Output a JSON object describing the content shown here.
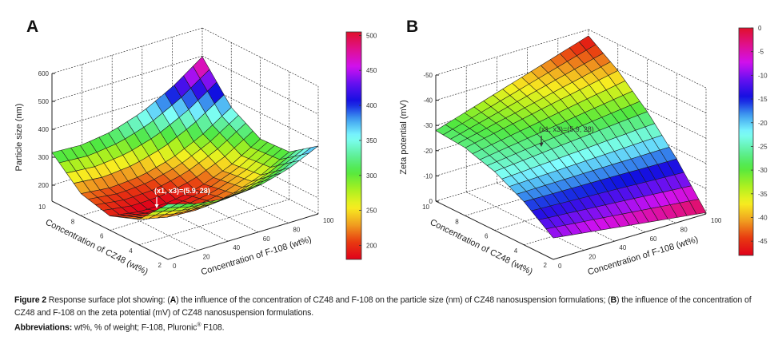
{
  "colormap": [
    "#e0001a",
    "#e83a10",
    "#f0a020",
    "#f8f020",
    "#a8f020",
    "#50e840",
    "#60f0a0",
    "#80ffff",
    "#40a0f0",
    "#1010e0",
    "#6010f0",
    "#d010f0",
    "#e01090",
    "#e0102a"
  ],
  "chart_data": [
    {
      "type": "surface",
      "panel": "A",
      "zlabel": "Particle size (nm)",
      "xlabel": "Concentration of CZ48 (wt%)",
      "ylabel": "Concentration of F-108 (wt%)",
      "x_ticks": [
        "10",
        "8",
        "6",
        "4",
        "2"
      ],
      "y_ticks": [
        "0",
        "20",
        "40",
        "60",
        "80",
        "100"
      ],
      "z_ticks": [
        "600",
        "500",
        "400",
        "300",
        "200"
      ],
      "x_range": [
        2,
        10
      ],
      "y_range": [
        0,
        100
      ],
      "z_range": [
        143,
        600
      ],
      "grid_x": [
        2,
        4,
        6,
        8,
        10
      ],
      "grid_y": [
        0,
        20,
        40,
        60,
        80,
        100
      ],
      "z_values": [
        [
          341,
          310,
          298,
          307,
          336,
          386
        ],
        [
          234,
          210,
          205,
          221,
          257,
          313
        ],
        [
          194,
          177,
          179,
          201,
          244,
          307
        ],
        [
          222,
          211,
          220,
          249,
          299,
          368
        ],
        [
          317,
          312,
          328,
          364,
          421,
          497
        ]
      ],
      "annotation": "(x1, x3)=(5.9, 28)",
      "annotation_point": [
        5.9,
        28
      ],
      "colorbar_ticks": [
        "500",
        "450",
        "400",
        "350",
        "300",
        "250",
        "200"
      ],
      "colorbar_range": [
        180,
        505
      ]
    },
    {
      "type": "surface",
      "panel": "B",
      "zlabel": "Zeta potential (mV)",
      "xlabel": "Concentration of CZ48 (wt%)",
      "ylabel": "Concentration of F-108 (wt%)",
      "x_ticks": [
        "10",
        "8",
        "6",
        "4",
        "2"
      ],
      "y_ticks": [
        "0",
        "20",
        "40",
        "60",
        "80",
        "100"
      ],
      "z_ticks": [
        "-50",
        "-40",
        "-30",
        "-20",
        "-10",
        "0"
      ],
      "x_range": [
        2,
        10
      ],
      "y_range": [
        0,
        100
      ],
      "z_range": [
        0,
        -50
      ],
      "grid_x": [
        2,
        4,
        6,
        8,
        10
      ],
      "grid_y": [
        0,
        20,
        40,
        60,
        80,
        100
      ],
      "z_values": [
        [
          -8.5,
          -6.9,
          -5.3,
          -3.7,
          -2.1,
          -0.5
        ],
        [
          -17.1,
          -16.9,
          -16.7,
          -16.5,
          -16.2,
          -16.0
        ],
        [
          -23.3,
          -24.4,
          -25.6,
          -26.7,
          -27.9,
          -29.0
        ],
        [
          -26.9,
          -29.4,
          -31.9,
          -34.5,
          -37.0,
          -39.5
        ],
        [
          -28.0,
          -31.9,
          -35.8,
          -39.7,
          -43.6,
          -47.5
        ]
      ],
      "annotation": "(x1, x3)=(5.9, 28)",
      "annotation_point": [
        5.9,
        28
      ],
      "colorbar_ticks": [
        "0",
        "-5",
        "-10",
        "-15",
        "-20",
        "-25",
        "-30",
        "-35",
        "-40",
        "-45"
      ],
      "colorbar_range": [
        -48,
        0
      ]
    }
  ],
  "caption": {
    "lead": "Figure 2",
    "t1": " Response surface plot showing: (",
    "a": "A",
    "t2": ") the influence of the concentration of CZ48 and F-108 on the particle size (nm) of CZ48 nanosuspension formulations; (",
    "b": "B",
    "t3": ") the influence of the concentration of CZ48 and F-108 on the zeta potential (mV) of CZ48 nanosuspension formulations.",
    "abbr_label": "Abbreviations:",
    "abbr_text": " wt%, % of weight; F-108, Pluronic",
    "abbr_sup": "®",
    "abbr_end": " F108."
  }
}
